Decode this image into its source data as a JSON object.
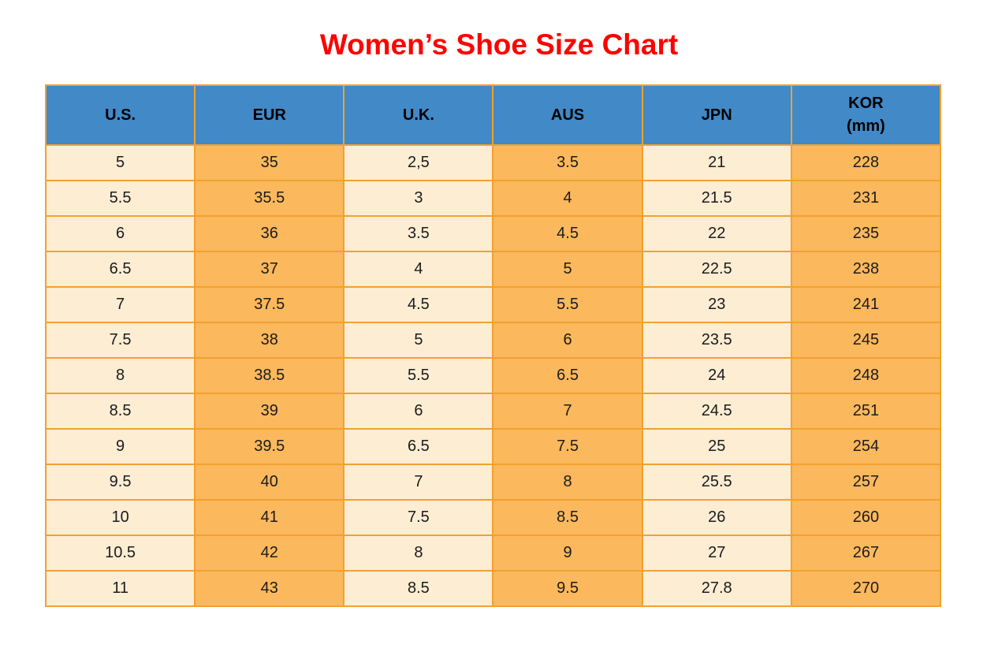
{
  "title": {
    "text": "Women’s Shoe Size Chart"
  },
  "colors": {
    "title": "#ff0000",
    "header_bg": "#4189c7",
    "header_text": "#000000",
    "cell_cream": "#fcedd3",
    "cell_orange": "#fbb85c",
    "border": "#f2a130",
    "cell_text": "#1c1c1c",
    "page_bg": "#ffffff"
  },
  "chart_data": {
    "type": "table",
    "title": "Women’s Shoe Size Chart",
    "columns": [
      {
        "label": "U.S.",
        "sublabel": ""
      },
      {
        "label": "EUR",
        "sublabel": ""
      },
      {
        "label": "U.K.",
        "sublabel": ""
      },
      {
        "label": "AUS",
        "sublabel": ""
      },
      {
        "label": "JPN",
        "sublabel": ""
      },
      {
        "label": "KOR",
        "sublabel": "(mm)"
      }
    ],
    "column_stripe": [
      "cream",
      "orange",
      "cream",
      "orange",
      "cream",
      "orange"
    ],
    "rows": [
      [
        "5",
        "35",
        "2,5",
        "3.5",
        "21",
        "228"
      ],
      [
        "5.5",
        "35.5",
        "3",
        "4",
        "21.5",
        "231"
      ],
      [
        "6",
        "36",
        "3.5",
        "4.5",
        "22",
        "235"
      ],
      [
        "6.5",
        "37",
        "4",
        "5",
        "22.5",
        "238"
      ],
      [
        "7",
        "37.5",
        "4.5",
        "5.5",
        "23",
        "241"
      ],
      [
        "7.5",
        "38",
        "5",
        "6",
        "23.5",
        "245"
      ],
      [
        "8",
        "38.5",
        "5.5",
        "6.5",
        "24",
        "248"
      ],
      [
        "8.5",
        "39",
        "6",
        "7",
        "24.5",
        "251"
      ],
      [
        "9",
        "39.5",
        "6.5",
        "7.5",
        "25",
        "254"
      ],
      [
        "9.5",
        "40",
        "7",
        "8",
        "25.5",
        "257"
      ],
      [
        "10",
        "41",
        "7.5",
        "8.5",
        "26",
        "260"
      ],
      [
        "10.5",
        "42",
        "8",
        "9",
        "27",
        "267"
      ],
      [
        "11",
        "43",
        "8.5",
        "9.5",
        "27.8",
        "270"
      ]
    ]
  }
}
